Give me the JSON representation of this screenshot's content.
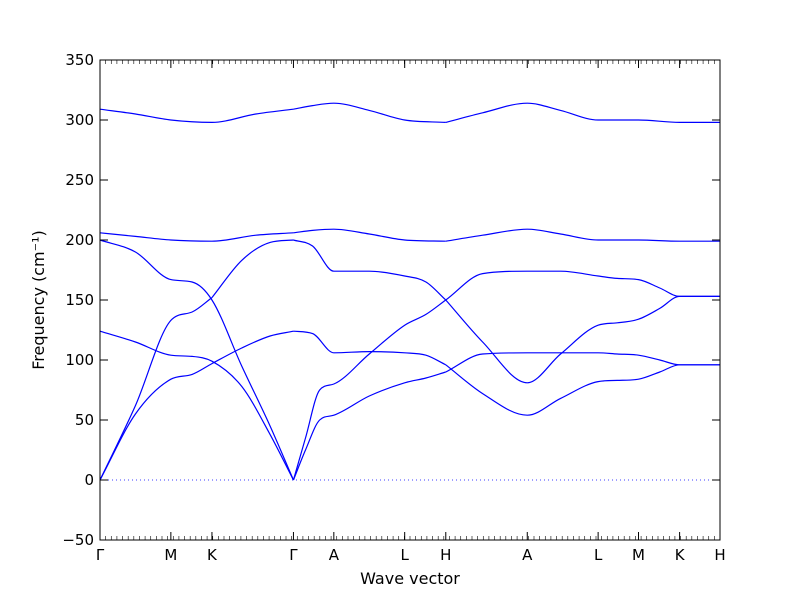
{
  "chart_data": {
    "type": "line",
    "title": "",
    "xlabel": "Wave vector",
    "ylabel": "Frequency (cm⁻¹)",
    "ylim": [
      -50,
      350
    ],
    "yticks": [
      -50,
      0,
      50,
      100,
      150,
      200,
      250,
      300,
      350
    ],
    "grid": false,
    "legend": "none",
    "line_color": "#0000ff",
    "zero_line": {
      "y": 0,
      "style": "dotted"
    },
    "x_ticks": [
      {
        "label": "Γ",
        "x": 0
      },
      {
        "label": "M",
        "x": 1.0
      },
      {
        "label": "K",
        "x": 1.58
      },
      {
        "label": "Γ",
        "x": 2.73
      },
      {
        "label": "A",
        "x": 3.3
      },
      {
        "label": "L",
        "x": 4.3
      },
      {
        "label": "H",
        "x": 4.88
      },
      {
        "label": "A",
        "x": 6.03
      },
      {
        "label": "L",
        "x": 7.03
      },
      {
        "label": "M",
        "x": 7.6
      },
      {
        "label": "K",
        "x": 8.18
      },
      {
        "label": "H",
        "x": 8.75
      }
    ],
    "series": [
      {
        "x": [
          0,
          0.5,
          1.0,
          1.3,
          1.58,
          2.0,
          2.4,
          2.73
        ],
        "y": [
          0,
          55,
          84,
          88,
          97,
          110,
          120,
          124
        ]
      },
      {
        "x": [
          0,
          0.5,
          1.0,
          1.3,
          1.58
        ],
        "y": [
          0,
          62,
          133,
          140,
          152
        ]
      },
      {
        "x": [
          1.58,
          2.0,
          2.4,
          2.73
        ],
        "y": [
          152,
          183,
          198,
          200
        ]
      },
      {
        "x": [
          0,
          0.5,
          1.0,
          1.3,
          1.58,
          2.0,
          2.4,
          2.73
        ],
        "y": [
          124,
          115,
          104,
          103,
          99,
          78,
          38,
          0
        ]
      },
      {
        "x": [
          0,
          0.5,
          1.0,
          1.3,
          1.58,
          2.0,
          2.4,
          2.73
        ],
        "y": [
          200,
          190,
          167,
          165,
          150,
          95,
          45,
          0
        ]
      },
      {
        "x": [
          0,
          0.5,
          1.0,
          1.58,
          2.2,
          2.73
        ],
        "y": [
          206,
          203,
          200,
          199,
          204,
          206
        ]
      },
      {
        "x": [
          0,
          0.5,
          1.0,
          1.58,
          2.2,
          2.73
        ],
        "y": [
          309,
          305,
          300,
          298,
          305,
          309
        ]
      },
      {
        "x": [
          2.73,
          2.9,
          3.1,
          3.3,
          3.8,
          4.3,
          4.6,
          4.88
        ],
        "y": [
          0,
          25,
          50,
          54,
          70,
          81,
          85,
          90
        ]
      },
      {
        "x": [
          2.73,
          2.9,
          3.1,
          3.3,
          3.8,
          4.3,
          4.6,
          4.88
        ],
        "y": [
          0,
          35,
          75,
          80,
          105,
          129,
          138,
          150
        ]
      },
      {
        "x": [
          2.73,
          3.0,
          3.3,
          3.8,
          4.3,
          4.6,
          4.88
        ],
        "y": [
          124,
          122,
          106,
          107,
          106,
          104,
          96
        ]
      },
      {
        "x": [
          2.73,
          3.0,
          3.3,
          3.8,
          4.3,
          4.6,
          4.88
        ],
        "y": [
          200,
          195,
          174,
          174,
          170,
          165,
          150
        ]
      },
      {
        "x": [
          2.73,
          3.0,
          3.3,
          3.8,
          4.3,
          4.88
        ],
        "y": [
          206,
          208,
          209,
          205,
          200,
          199
        ]
      },
      {
        "x": [
          2.73,
          3.0,
          3.3,
          3.8,
          4.3,
          4.88
        ],
        "y": [
          309,
          312,
          314,
          308,
          300,
          298
        ]
      },
      {
        "x": [
          4.88,
          5.4,
          6.03,
          6.5,
          7.03,
          7.3,
          7.6,
          7.9,
          8.18,
          8.75
        ],
        "y": [
          90,
          105,
          106,
          106,
          106,
          105,
          104,
          100,
          96,
          96
        ]
      },
      {
        "x": [
          4.88,
          5.4,
          6.03,
          6.5,
          7.03,
          7.3,
          7.6,
          7.9,
          8.18,
          8.75
        ],
        "y": [
          150,
          172,
          174,
          174,
          170,
          168,
          167,
          160,
          153,
          153
        ]
      },
      {
        "x": [
          4.88,
          5.4,
          6.03,
          6.5,
          7.03,
          7.3,
          7.6,
          7.9,
          8.18,
          8.75
        ],
        "y": [
          96,
          72,
          54,
          68,
          82,
          83,
          84,
          90,
          96,
          96
        ]
      },
      {
        "x": [
          4.88,
          5.4,
          6.03,
          6.5,
          7.03,
          7.3,
          7.6,
          7.9,
          8.18,
          8.75
        ],
        "y": [
          150,
          115,
          81,
          105,
          129,
          131,
          134,
          143,
          153,
          153
        ]
      },
      {
        "x": [
          4.88,
          5.4,
          6.03,
          6.5,
          7.03,
          7.6,
          8.18,
          8.75
        ],
        "y": [
          199,
          204,
          209,
          205,
          200,
          200,
          199,
          199
        ]
      },
      {
        "x": [
          4.88,
          5.4,
          6.03,
          6.5,
          7.03,
          7.6,
          8.18,
          8.75
        ],
        "y": [
          298,
          306,
          314,
          308,
          300,
          300,
          298,
          298
        ]
      }
    ]
  }
}
